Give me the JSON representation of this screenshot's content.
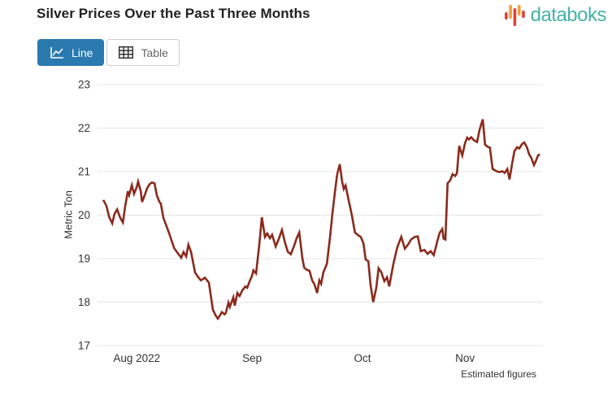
{
  "header": {
    "title": "Silver Prices Over the Past Three Months",
    "logo_text": "databoks"
  },
  "toolbar": {
    "line_label": "Line",
    "table_label": "Table"
  },
  "footnote": "Estimated figures",
  "icons": {
    "logo": "bar-pulse-icon",
    "line_button": "line-chart-icon",
    "table_button": "table-grid-icon"
  },
  "colors": {
    "accent_blue": "#2a79af",
    "line": "#8b2a1c",
    "teal": "#48b1a7",
    "logo_red": "#e2403a",
    "logo_orange": "#f49d37",
    "grid": "#e4e4e4",
    "axis_text": "#333333",
    "title_text": "#212121",
    "inactive_text": "#666666"
  },
  "chart_data": {
    "type": "line",
    "title": "Silver Prices Over the Past Three Months",
    "xlabel": "",
    "ylabel": "Metric Ton",
    "ylim": [
      17,
      23
    ],
    "grid": true,
    "legend": "none",
    "y_ticks": [
      23,
      22,
      21,
      20,
      19,
      18,
      17
    ],
    "x_ticks": [
      {
        "label": "Aug 2022",
        "f": 0.088
      },
      {
        "label": "Sep",
        "f": 0.347
      },
      {
        "label": "Oct",
        "f": 0.595
      },
      {
        "label": "Nov",
        "f": 0.825
      }
    ],
    "points": [
      [
        0.013,
        20.35
      ],
      [
        0.02,
        20.21
      ],
      [
        0.026,
        19.96
      ],
      [
        0.033,
        19.81
      ],
      [
        0.038,
        20.02
      ],
      [
        0.044,
        20.13
      ],
      [
        0.051,
        19.94
      ],
      [
        0.057,
        19.83
      ],
      [
        0.062,
        20.2
      ],
      [
        0.068,
        20.55
      ],
      [
        0.071,
        20.46
      ],
      [
        0.077,
        20.69
      ],
      [
        0.082,
        20.49
      ],
      [
        0.088,
        20.64
      ],
      [
        0.091,
        20.77
      ],
      [
        0.097,
        20.55
      ],
      [
        0.1,
        20.3
      ],
      [
        0.106,
        20.46
      ],
      [
        0.111,
        20.61
      ],
      [
        0.117,
        20.71
      ],
      [
        0.122,
        20.75
      ],
      [
        0.128,
        20.73
      ],
      [
        0.133,
        20.46
      ],
      [
        0.139,
        20.3
      ],
      [
        0.142,
        20.27
      ],
      [
        0.148,
        19.93
      ],
      [
        0.153,
        19.8
      ],
      [
        0.161,
        19.58
      ],
      [
        0.166,
        19.42
      ],
      [
        0.172,
        19.24
      ],
      [
        0.179,
        19.14
      ],
      [
        0.182,
        19.1
      ],
      [
        0.188,
        19.02
      ],
      [
        0.193,
        19.15
      ],
      [
        0.199,
        19.05
      ],
      [
        0.204,
        19.32
      ],
      [
        0.21,
        19.15
      ],
      [
        0.219,
        18.68
      ],
      [
        0.224,
        18.6
      ],
      [
        0.232,
        18.5
      ],
      [
        0.241,
        18.56
      ],
      [
        0.25,
        18.45
      ],
      [
        0.259,
        17.83
      ],
      [
        0.265,
        17.7
      ],
      [
        0.27,
        17.62
      ],
      [
        0.276,
        17.71
      ],
      [
        0.279,
        17.77
      ],
      [
        0.285,
        17.72
      ],
      [
        0.288,
        17.75
      ],
      [
        0.294,
        17.99
      ],
      [
        0.297,
        17.89
      ],
      [
        0.305,
        18.11
      ],
      [
        0.308,
        17.92
      ],
      [
        0.314,
        18.21
      ],
      [
        0.319,
        18.14
      ],
      [
        0.325,
        18.27
      ],
      [
        0.332,
        18.36
      ],
      [
        0.336,
        18.33
      ],
      [
        0.343,
        18.52
      ],
      [
        0.347,
        18.61
      ],
      [
        0.35,
        18.73
      ],
      [
        0.356,
        18.66
      ],
      [
        0.363,
        19.3
      ],
      [
        0.369,
        19.95
      ],
      [
        0.376,
        19.5
      ],
      [
        0.381,
        19.58
      ],
      [
        0.387,
        19.47
      ],
      [
        0.392,
        19.55
      ],
      [
        0.4,
        19.28
      ],
      [
        0.407,
        19.45
      ],
      [
        0.414,
        19.66
      ],
      [
        0.42,
        19.4
      ],
      [
        0.427,
        19.16
      ],
      [
        0.434,
        19.1
      ],
      [
        0.442,
        19.31
      ],
      [
        0.447,
        19.47
      ],
      [
        0.453,
        19.6
      ],
      [
        0.46,
        19.0
      ],
      [
        0.464,
        18.79
      ],
      [
        0.469,
        18.75
      ],
      [
        0.476,
        18.72
      ],
      [
        0.482,
        18.5
      ],
      [
        0.487,
        18.41
      ],
      [
        0.493,
        18.21
      ],
      [
        0.498,
        18.5
      ],
      [
        0.502,
        18.42
      ],
      [
        0.507,
        18.68
      ],
      [
        0.515,
        18.88
      ],
      [
        0.522,
        19.5
      ],
      [
        0.527,
        20.0
      ],
      [
        0.533,
        20.53
      ],
      [
        0.538,
        20.93
      ],
      [
        0.544,
        21.17
      ],
      [
        0.549,
        20.77
      ],
      [
        0.553,
        20.6
      ],
      [
        0.557,
        20.68
      ],
      [
        0.564,
        20.33
      ],
      [
        0.571,
        20.0
      ],
      [
        0.578,
        19.6
      ],
      [
        0.586,
        19.53
      ],
      [
        0.591,
        19.5
      ],
      [
        0.597,
        19.35
      ],
      [
        0.602,
        18.98
      ],
      [
        0.608,
        18.94
      ],
      [
        0.613,
        18.4
      ],
      [
        0.619,
        18.0
      ],
      [
        0.626,
        18.33
      ],
      [
        0.631,
        18.78
      ],
      [
        0.637,
        18.69
      ],
      [
        0.644,
        18.48
      ],
      [
        0.65,
        18.57
      ],
      [
        0.655,
        18.36
      ],
      [
        0.664,
        18.87
      ],
      [
        0.673,
        19.26
      ],
      [
        0.682,
        19.5
      ],
      [
        0.69,
        19.23
      ],
      [
        0.697,
        19.32
      ],
      [
        0.704,
        19.44
      ],
      [
        0.712,
        19.5
      ],
      [
        0.719,
        19.51
      ],
      [
        0.726,
        19.17
      ],
      [
        0.734,
        19.2
      ],
      [
        0.741,
        19.11
      ],
      [
        0.748,
        19.17
      ],
      [
        0.755,
        19.08
      ],
      [
        0.763,
        19.4
      ],
      [
        0.768,
        19.59
      ],
      [
        0.774,
        19.68
      ],
      [
        0.777,
        19.46
      ],
      [
        0.781,
        19.44
      ],
      [
        0.786,
        20.73
      ],
      [
        0.792,
        20.8
      ],
      [
        0.797,
        20.94
      ],
      [
        0.803,
        20.9
      ],
      [
        0.807,
        20.96
      ],
      [
        0.812,
        21.59
      ],
      [
        0.816,
        21.46
      ],
      [
        0.819,
        21.37
      ],
      [
        0.825,
        21.65
      ],
      [
        0.83,
        21.78
      ],
      [
        0.834,
        21.74
      ],
      [
        0.839,
        21.79
      ],
      [
        0.845,
        21.72
      ],
      [
        0.852,
        21.68
      ],
      [
        0.858,
        21.97
      ],
      [
        0.865,
        22.2
      ],
      [
        0.87,
        21.62
      ],
      [
        0.876,
        21.57
      ],
      [
        0.881,
        21.55
      ],
      [
        0.887,
        21.06
      ],
      [
        0.892,
        21.03
      ],
      [
        0.898,
        21.0
      ],
      [
        0.903,
        20.99
      ],
      [
        0.909,
        21.01
      ],
      [
        0.914,
        20.97
      ],
      [
        0.92,
        21.06
      ],
      [
        0.925,
        20.82
      ],
      [
        0.931,
        21.19
      ],
      [
        0.936,
        21.47
      ],
      [
        0.942,
        21.56
      ],
      [
        0.947,
        21.53
      ],
      [
        0.953,
        21.63
      ],
      [
        0.958,
        21.67
      ],
      [
        0.964,
        21.56
      ],
      [
        0.969,
        21.4
      ],
      [
        0.974,
        21.31
      ],
      [
        0.98,
        21.15
      ],
      [
        0.984,
        21.24
      ],
      [
        0.989,
        21.37
      ],
      [
        0.993,
        21.4
      ]
    ]
  }
}
